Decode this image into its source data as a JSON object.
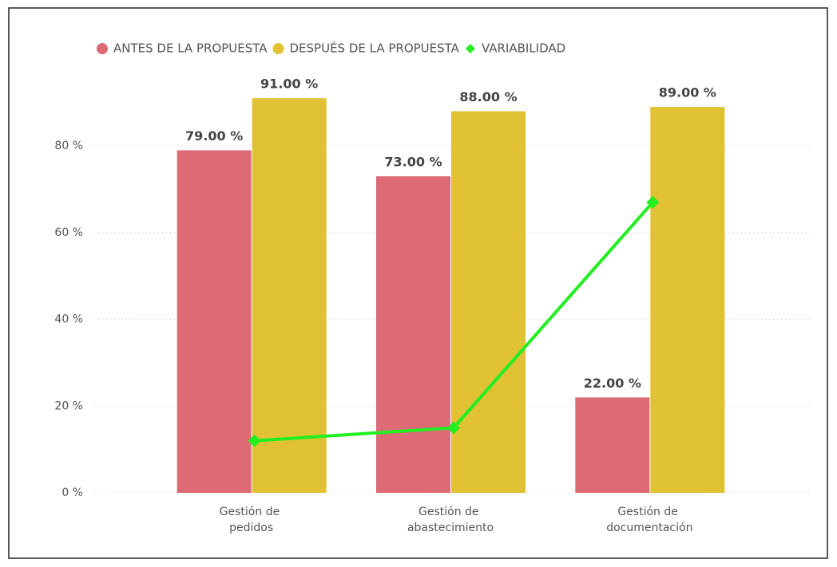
{
  "chart_data": {
    "type": "bar",
    "categories": [
      "Gestión de pedidos",
      "Gestión de abastecimiento",
      "Gestión de documentación"
    ],
    "series": [
      {
        "name": "ANTES DE LA PROPUESTA",
        "type": "bar",
        "color": "#dd6b75",
        "values": [
          79,
          73,
          22
        ],
        "value_labels": [
          "79.00 %",
          "73.00 %",
          "22.00 %"
        ]
      },
      {
        "name": "DESPUÉS DE LA PROPUESTA",
        "type": "bar",
        "color": "#e0c234",
        "values": [
          91,
          88,
          89
        ],
        "value_labels": [
          "91.00 %",
          "88.00 %",
          "89.00 %"
        ]
      },
      {
        "name": "VARIABILIDAD",
        "type": "line",
        "color": "#22ee22",
        "values": [
          12,
          15,
          67
        ]
      }
    ],
    "ylim": [
      0,
      95
    ],
    "yticks": [
      {
        "value": 0,
        "label": "0 %"
      },
      {
        "value": 20,
        "label": "20 %"
      },
      {
        "value": 40,
        "label": "40 %"
      },
      {
        "value": 60,
        "label": "60 %"
      },
      {
        "value": 80,
        "label": "80 %"
      }
    ],
    "grid": true,
    "legend": "top"
  }
}
